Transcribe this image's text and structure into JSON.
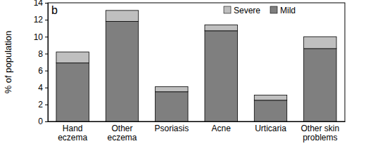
{
  "chart_data": {
    "type": "bar",
    "title": "b",
    "stacked": true,
    "legend": "upper right",
    "y_label": "% of population",
    "categories": [
      "Hand\neczema",
      "Other\neczema",
      "Psoriasis",
      "Acne",
      "Urticaria",
      "Other skin\nproblems"
    ],
    "series": [
      {
        "name": "Mild",
        "color": "#7f7f7f",
        "values": [
          6.9,
          11.8,
          3.5,
          10.7,
          2.5,
          8.6
        ]
      },
      {
        "name": "Severe",
        "color": "#bfbfbf",
        "values": [
          1.3,
          1.3,
          0.6,
          0.7,
          0.6,
          1.4
        ]
      }
    ],
    "ylim": [
      0,
      14
    ],
    "yticks": [
      0,
      2,
      4,
      6,
      8,
      10,
      12,
      14
    ],
    "grid": false
  }
}
